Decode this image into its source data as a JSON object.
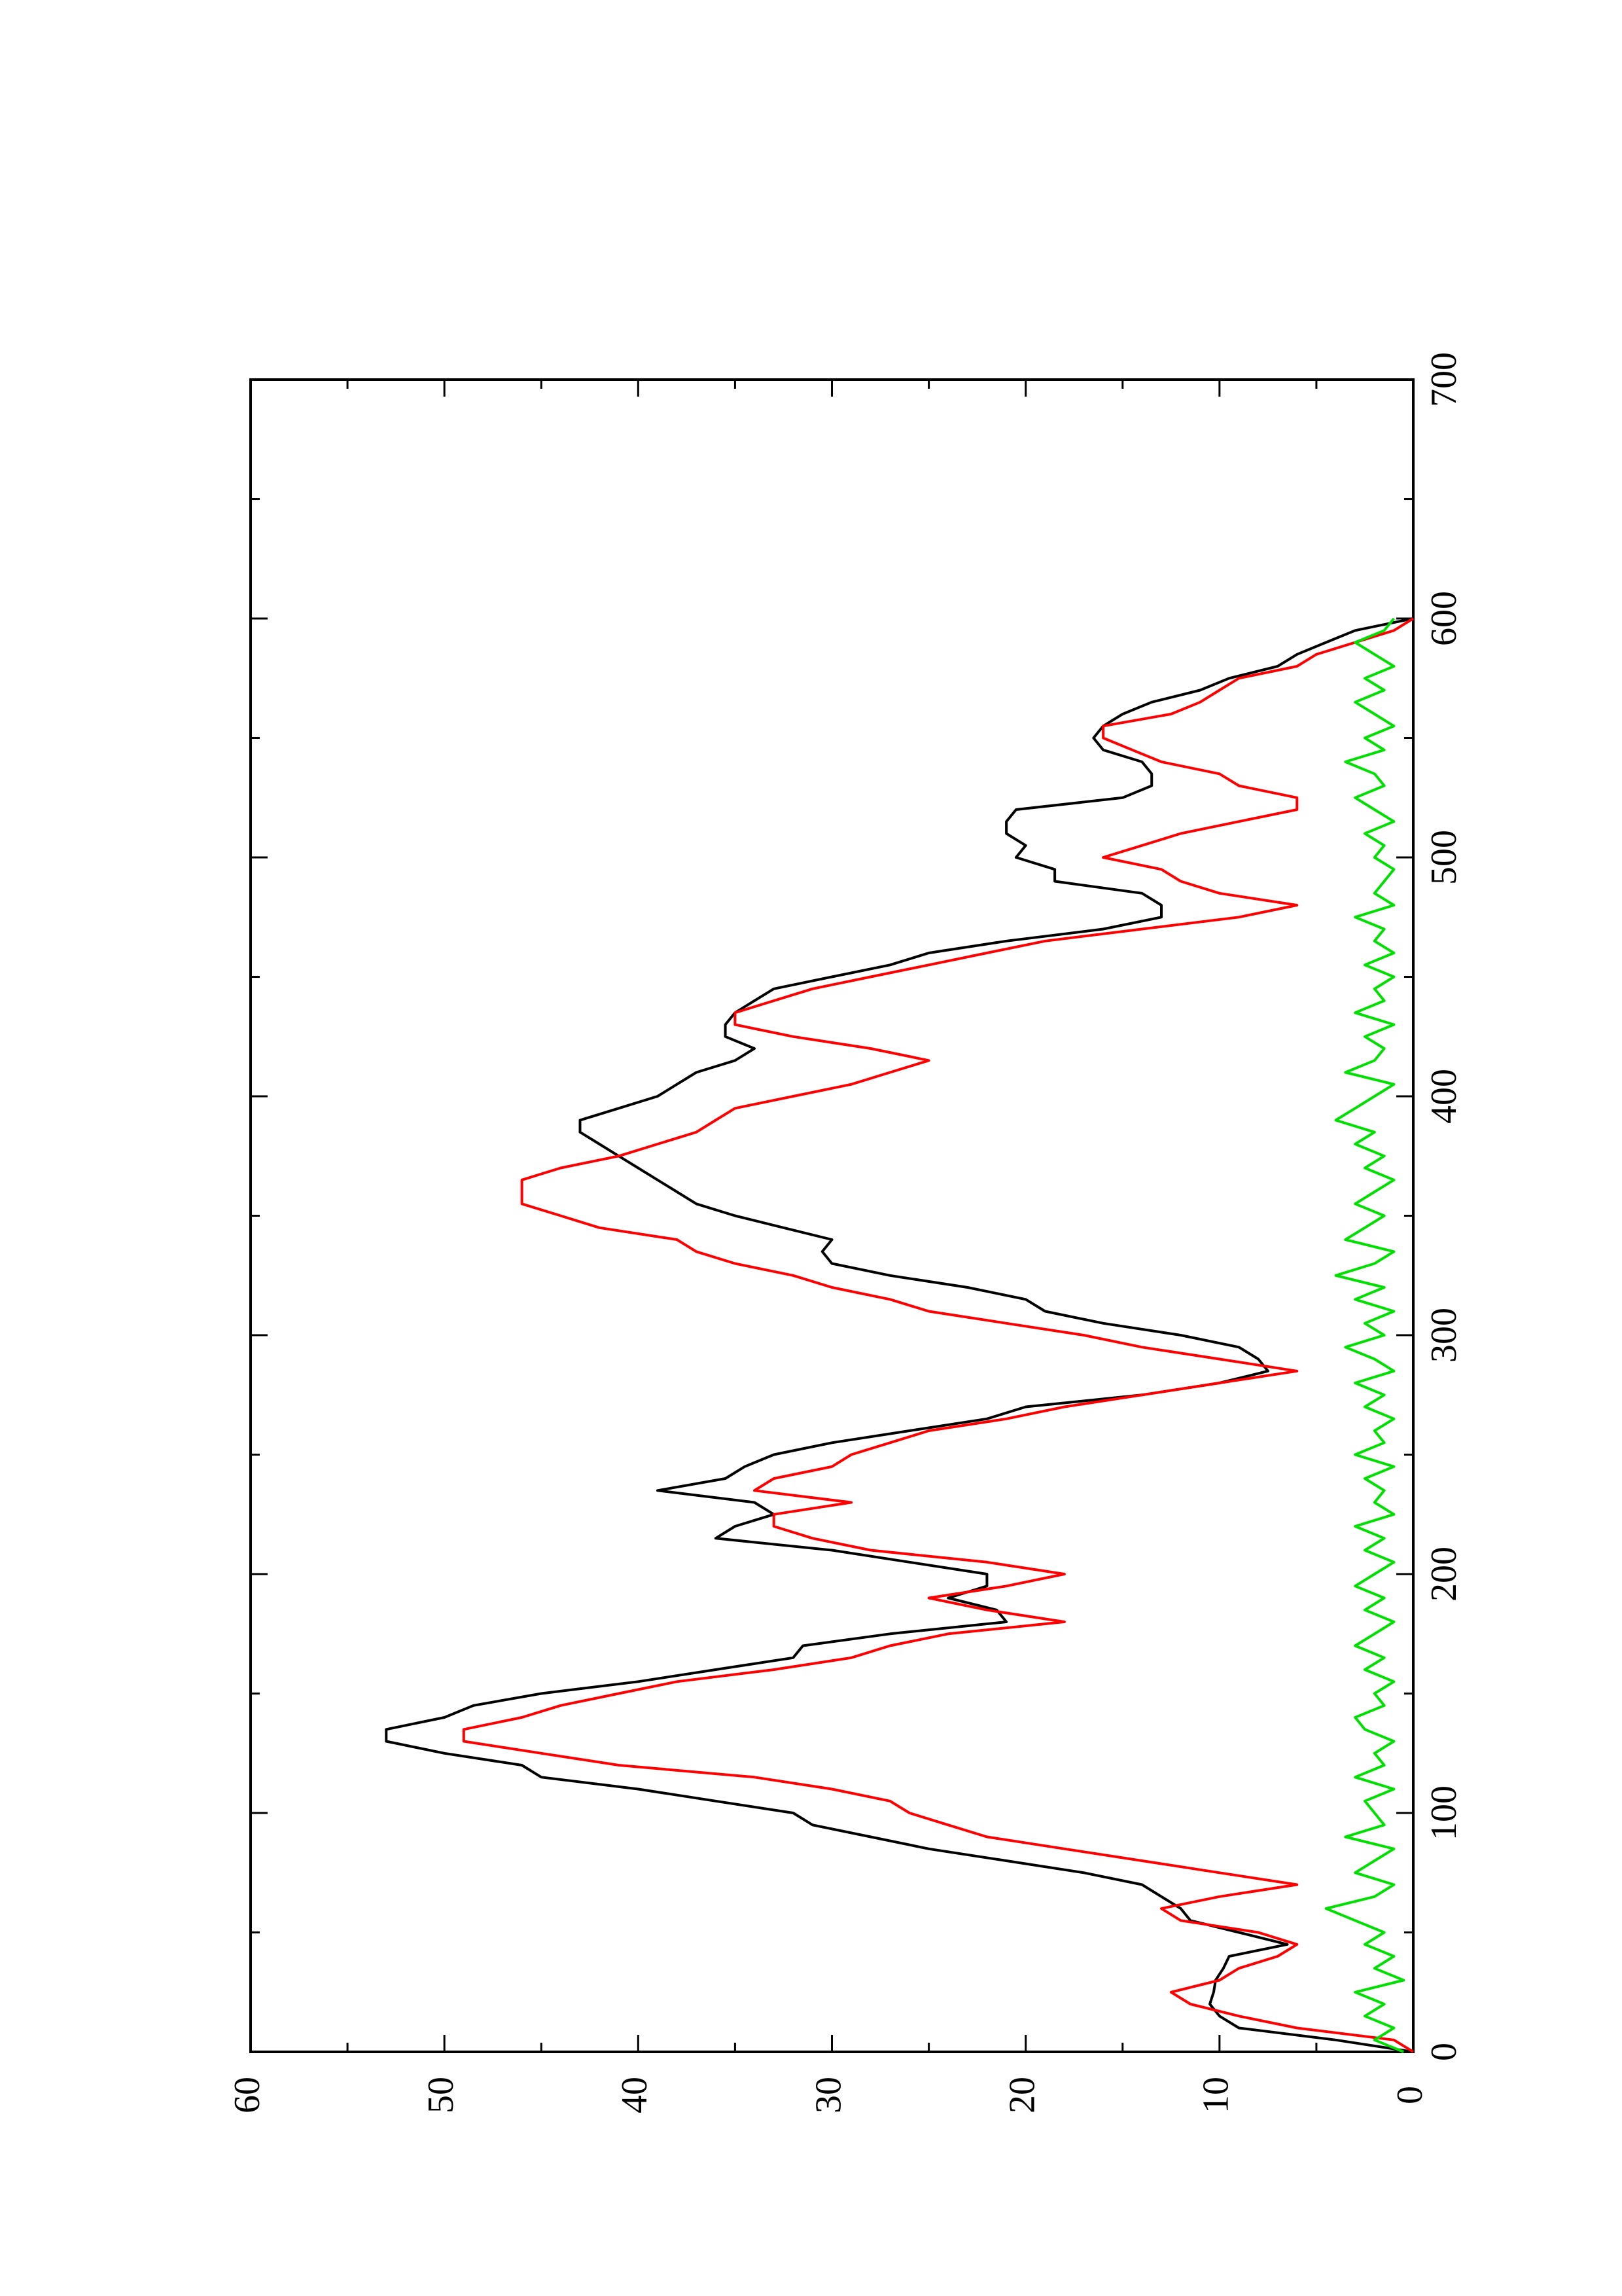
{
  "chart_data": {
    "type": "line",
    "orientation": "rotated-90-ccw",
    "title": "",
    "xlabel": "",
    "ylabel": "",
    "xlim": [
      0,
      700
    ],
    "ylim": [
      0,
      60
    ],
    "x_ticks": [
      "0",
      "100",
      "200",
      "300",
      "400",
      "500",
      "600",
      "700"
    ],
    "y_ticks": [
      "0",
      "10",
      "20",
      "30",
      "40",
      "50",
      "60"
    ],
    "grid": false,
    "legend": "none",
    "series": [
      {
        "color": "#000000",
        "x": [
          0,
          5,
          10,
          15,
          20,
          25,
          30,
          35,
          40,
          45,
          50,
          55,
          60,
          65,
          70,
          75,
          80,
          85,
          90,
          95,
          100,
          105,
          110,
          115,
          120,
          125,
          130,
          135,
          140,
          145,
          150,
          155,
          160,
          165,
          170,
          175,
          180,
          185,
          190,
          195,
          200,
          205,
          210,
          215,
          220,
          225,
          230,
          235,
          240,
          245,
          250,
          255,
          260,
          265,
          270,
          275,
          280,
          285,
          290,
          295,
          300,
          305,
          310,
          315,
          320,
          325,
          330,
          335,
          340,
          345,
          350,
          355,
          360,
          365,
          370,
          375,
          380,
          385,
          390,
          395,
          400,
          405,
          410,
          415,
          420,
          425,
          430,
          435,
          440,
          445,
          450,
          455,
          460,
          465,
          470,
          475,
          480,
          485,
          490,
          495,
          500,
          505,
          510,
          515,
          520,
          525,
          530,
          535,
          540,
          545,
          550,
          555,
          560,
          565,
          570,
          575,
          580,
          585,
          590,
          595,
          600
        ],
        "y": [
          0,
          4,
          9,
          10,
          10.5,
          10.3,
          10.2,
          9.8,
          9.5,
          6.5,
          9,
          11.5,
          12,
          13,
          14,
          17,
          21,
          25,
          28,
          31,
          32,
          36,
          40,
          45,
          46,
          50,
          53,
          53,
          50,
          48.5,
          45,
          40,
          36,
          32,
          31.5,
          27,
          21,
          21.5,
          24,
          22,
          22,
          26,
          30,
          36,
          35,
          33,
          34,
          39,
          35.5,
          34.5,
          33,
          30,
          26,
          22,
          20,
          14,
          10,
          7.5,
          8,
          9,
          12,
          16,
          19,
          20,
          23,
          27,
          30,
          30.5,
          30,
          32.5,
          35,
          37,
          38,
          39,
          40,
          41,
          42,
          43,
          43,
          41,
          39,
          38,
          37,
          35,
          34,
          35.5,
          35.5,
          35,
          34,
          33,
          30,
          27,
          25,
          21,
          16,
          13,
          13,
          14,
          18.5,
          18.5,
          20.5,
          20,
          21,
          21,
          20.5,
          15,
          13.5,
          13.5,
          14,
          16,
          16.5,
          16,
          15,
          13.5,
          11,
          9.5,
          7,
          6,
          4.5,
          3,
          0
        ]
      },
      {
        "color": "#ff0000",
        "x": [
          0,
          5,
          10,
          15,
          20,
          25,
          30,
          35,
          40,
          45,
          50,
          55,
          60,
          65,
          70,
          75,
          80,
          85,
          90,
          95,
          100,
          105,
          110,
          115,
          120,
          125,
          130,
          135,
          140,
          145,
          150,
          155,
          160,
          165,
          170,
          175,
          180,
          185,
          190,
          195,
          200,
          205,
          210,
          215,
          220,
          225,
          230,
          235,
          240,
          245,
          250,
          255,
          260,
          265,
          270,
          275,
          280,
          285,
          290,
          295,
          300,
          305,
          310,
          315,
          320,
          325,
          330,
          335,
          340,
          345,
          350,
          355,
          360,
          365,
          370,
          375,
          380,
          385,
          390,
          395,
          400,
          405,
          410,
          415,
          420,
          425,
          430,
          435,
          440,
          445,
          450,
          455,
          460,
          465,
          470,
          475,
          480,
          485,
          490,
          495,
          500,
          505,
          510,
          515,
          520,
          525,
          530,
          535,
          540,
          545,
          550,
          555,
          560,
          565,
          570,
          575,
          580,
          585,
          590,
          595,
          600
        ],
        "y": [
          0,
          1,
          6,
          9,
          11.5,
          12.5,
          10,
          9,
          7,
          6,
          8,
          12,
          13,
          10,
          6,
          10,
          14,
          18,
          22,
          24,
          26,
          27,
          30,
          34,
          41,
          45,
          49,
          49,
          46,
          44,
          41,
          38,
          33,
          29,
          27,
          24,
          18,
          22,
          25,
          21,
          18,
          22,
          28,
          31,
          33,
          33,
          29,
          34,
          33,
          30,
          29,
          27,
          25,
          21,
          18,
          14,
          10,
          6,
          10,
          14,
          17,
          21,
          25,
          27,
          30,
          32,
          35,
          37,
          38,
          42,
          44,
          46,
          46,
          46,
          44,
          41,
          39,
          37,
          36,
          35,
          32,
          29,
          27,
          25,
          28,
          32,
          35,
          35,
          33,
          31,
          28,
          25,
          22,
          19,
          14,
          9,
          6,
          10,
          12,
          13,
          16,
          14,
          12,
          9,
          6,
          6,
          9,
          10,
          13,
          14.5,
          16,
          16,
          12.5,
          11,
          10,
          9,
          6,
          5,
          3,
          1,
          0
        ]
      },
      {
        "color": "#00e000",
        "x": [
          0,
          5,
          10,
          15,
          20,
          25,
          30,
          35,
          40,
          45,
          50,
          55,
          60,
          65,
          70,
          75,
          80,
          85,
          90,
          95,
          100,
          105,
          110,
          115,
          120,
          125,
          130,
          135,
          140,
          145,
          150,
          155,
          160,
          165,
          170,
          175,
          180,
          185,
          190,
          195,
          200,
          205,
          210,
          215,
          220,
          225,
          230,
          235,
          240,
          245,
          250,
          255,
          260,
          265,
          270,
          275,
          280,
          285,
          290,
          295,
          300,
          305,
          310,
          315,
          320,
          325,
          330,
          335,
          340,
          345,
          350,
          355,
          360,
          365,
          370,
          375,
          380,
          385,
          390,
          395,
          400,
          405,
          410,
          415,
          420,
          425,
          430,
          435,
          440,
          445,
          450,
          455,
          460,
          465,
          470,
          475,
          480,
          485,
          490,
          495,
          500,
          505,
          510,
          515,
          520,
          525,
          530,
          535,
          540,
          545,
          550,
          555,
          560,
          565,
          570,
          575,
          580,
          585,
          590,
          595,
          600
        ],
        "y": [
          0.5,
          2,
          1,
          2.5,
          1.5,
          3,
          0.5,
          2,
          1,
          2.5,
          1.5,
          3,
          4.5,
          2,
          1,
          3,
          2,
          1,
          3.5,
          1.5,
          2,
          2.5,
          1,
          3,
          1.5,
          2,
          1,
          2.5,
          3,
          1.5,
          2,
          1,
          2.5,
          1.5,
          3,
          2,
          1,
          2.5,
          1.5,
          3,
          2,
          1,
          2.5,
          1.5,
          3,
          1,
          2,
          1.5,
          2.5,
          1,
          3,
          1.5,
          2,
          1,
          2.5,
          1.5,
          3,
          1,
          2,
          3.5,
          1.5,
          2.5,
          1,
          3,
          1.5,
          4,
          2,
          1,
          3.5,
          2.5,
          1.5,
          3,
          2,
          1,
          2.5,
          1.5,
          3,
          2,
          4,
          3,
          2,
          1,
          3.5,
          2,
          1.5,
          2.5,
          1,
          3,
          1.5,
          2,
          1,
          2.5,
          1,
          2,
          1.5,
          3,
          1,
          2,
          1.5,
          1,
          2,
          1.5,
          2.5,
          1,
          2,
          3,
          1.5,
          2,
          3.5,
          1.5,
          2.5,
          1,
          2,
          3,
          1.5,
          2.5,
          1,
          2,
          3,
          1.5,
          1
        ]
      }
    ]
  }
}
